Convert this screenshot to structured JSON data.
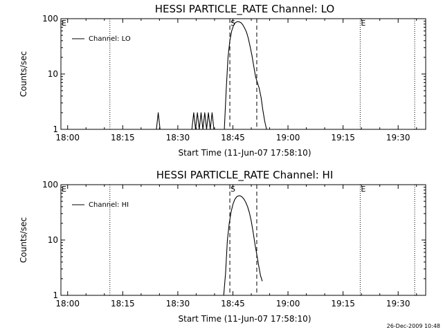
{
  "footer": {
    "timestamp": "26-Dec-2009 10:48"
  },
  "chart_data": [
    {
      "type": "line",
      "title": "HESSI PARTICLE_RATE Channel: LO",
      "xlabel": "Start Time (11-Jun-07 17:58:10)",
      "ylabel": "Counts/sec",
      "yscale": "log",
      "ylim": [
        1,
        100
      ],
      "xlim": [
        "17:58:10",
        "19:37:30"
      ],
      "x_ticks": [
        "18:00",
        "18:15",
        "18:30",
        "18:45",
        "19:00",
        "19:15",
        "19:30"
      ],
      "y_ticks": [
        "1",
        "10",
        "100"
      ],
      "legend": {
        "position": "top-left",
        "label": "Channel: LO"
      },
      "series": [
        {
          "name": "Channel: LO",
          "x": [
            "18:24:10",
            "18:24:40",
            "18:25:10",
            "18:33:50",
            "18:34:20",
            "18:34:50",
            "18:35:20",
            "18:35:50",
            "18:36:20",
            "18:36:50",
            "18:37:20",
            "18:37:50",
            "18:38:20",
            "18:38:50",
            "18:39:20",
            "18:39:50",
            "18:42:40",
            "18:43:10",
            "18:43:40",
            "18:44:10",
            "18:44:40",
            "18:45:10",
            "18:45:40",
            "18:46:10",
            "18:46:40",
            "18:47:10",
            "18:47:40",
            "18:48:10",
            "18:48:40",
            "18:49:10",
            "18:49:40",
            "18:50:10",
            "18:50:40",
            "18:51:10",
            "18:51:40",
            "18:52:10",
            "18:52:40",
            "18:53:10",
            "18:53:40",
            "18:54:10"
          ],
          "y": [
            1,
            2,
            1,
            1,
            2,
            1,
            2,
            1,
            2,
            1,
            2,
            1,
            2,
            1,
            2,
            1,
            1,
            5,
            20,
            40,
            60,
            75,
            85,
            88,
            88,
            85,
            78,
            68,
            58,
            45,
            32,
            22,
            14,
            9,
            7,
            5.5,
            3.8,
            2.2,
            1.4,
            1
          ]
        }
      ],
      "vlines": [
        {
          "x": "18:11:30",
          "style": "dotted",
          "label": ""
        },
        {
          "x": "18:44:10",
          "style": "dashed",
          "label": "S"
        },
        {
          "x": "18:51:30",
          "style": "dashed",
          "label": ""
        },
        {
          "x": "19:19:40",
          "style": "dotted",
          "label": "E"
        },
        {
          "x": "19:34:30",
          "style": "dotted",
          "label": ""
        }
      ],
      "corner_label": "E"
    },
    {
      "type": "line",
      "title": "HESSI PARTICLE_RATE Channel: HI",
      "xlabel": "Start Time (11-Jun-07 17:58:10)",
      "ylabel": "Counts/sec",
      "yscale": "log",
      "ylim": [
        1,
        100
      ],
      "xlim": [
        "17:58:10",
        "19:37:30"
      ],
      "x_ticks": [
        "18:00",
        "18:15",
        "18:30",
        "18:45",
        "19:00",
        "19:15",
        "19:30"
      ],
      "y_ticks": [
        "1",
        "10",
        "100"
      ],
      "legend": {
        "position": "top-left",
        "label": "Channel: HI"
      },
      "series": [
        {
          "name": "Channel: HI",
          "x": [
            "18:42:30",
            "18:43:00",
            "18:43:30",
            "18:44:00",
            "18:44:30",
            "18:45:00",
            "18:45:30",
            "18:46:00",
            "18:46:30",
            "18:47:00",
            "18:47:30",
            "18:48:00",
            "18:48:30",
            "18:49:00",
            "18:49:30",
            "18:50:00",
            "18:50:30",
            "18:51:00",
            "18:51:30",
            "18:52:00",
            "18:52:30",
            "18:53:00"
          ],
          "y": [
            1,
            2.5,
            10,
            20,
            32,
            44,
            54,
            60,
            63,
            63,
            60,
            55,
            48,
            40,
            31,
            22,
            14,
            8.5,
            5.5,
            3.5,
            2.3,
            1.8
          ]
        }
      ],
      "vlines": [
        {
          "x": "18:11:30",
          "style": "dotted",
          "label": ""
        },
        {
          "x": "18:44:10",
          "style": "dashed",
          "label": "S"
        },
        {
          "x": "18:51:30",
          "style": "dashed",
          "label": ""
        },
        {
          "x": "19:19:40",
          "style": "dotted",
          "label": "E"
        },
        {
          "x": "19:34:30",
          "style": "dotted",
          "label": ""
        }
      ],
      "corner_label": "E"
    }
  ]
}
